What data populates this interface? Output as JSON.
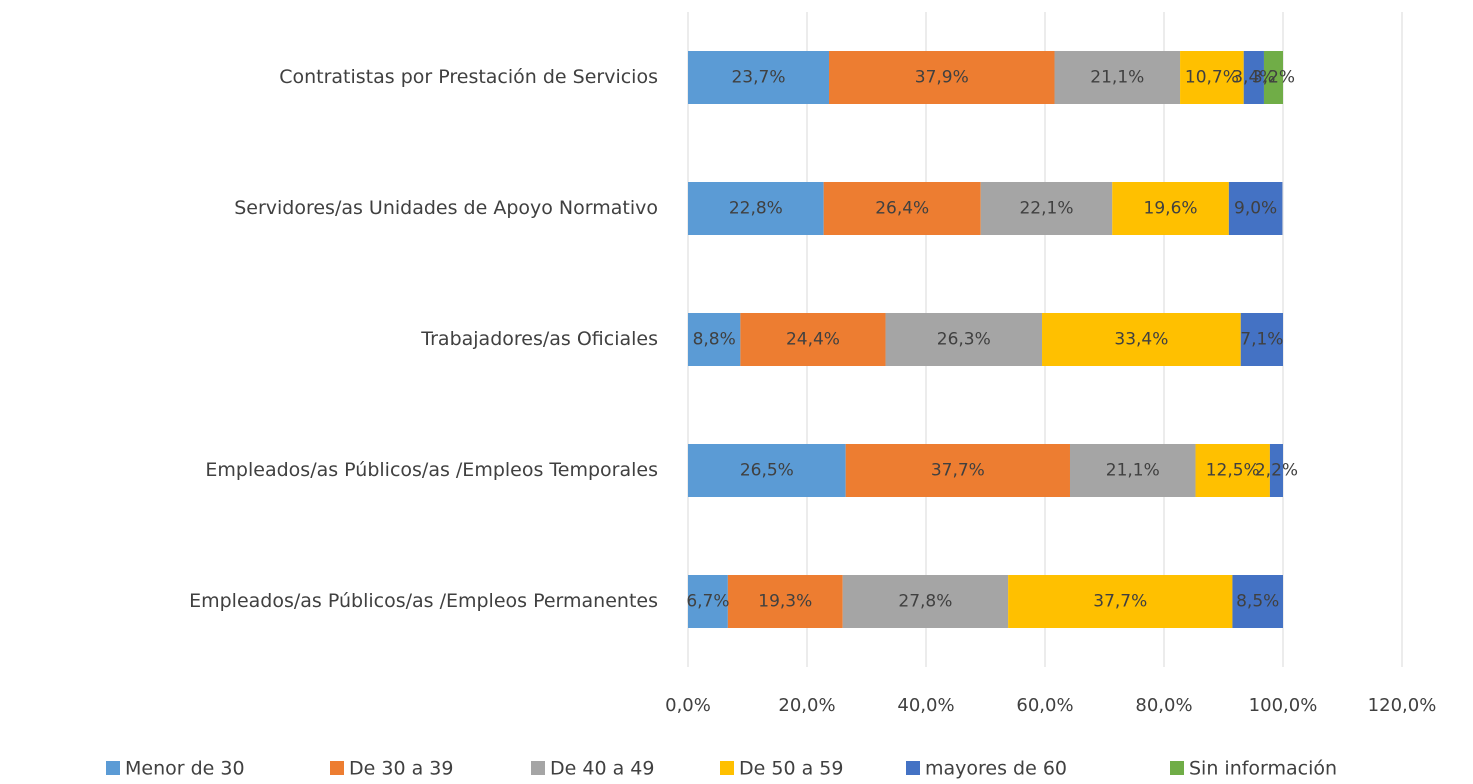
{
  "chart_data": {
    "type": "stacked-barh",
    "categories": [
      "Contratistas por Prestación de Servicios",
      "Servidores/as Unidades de Apoyo Normativo",
      "Trabajadores/as Oficiales",
      "Empleados/as Públicos/as /Empleos Temporales",
      "Empleados/as Públicos/as /Empleos Permanentes"
    ],
    "series": [
      {
        "name": "Menor de 30",
        "color": "#5b9bd5",
        "values": [
          23.7,
          22.8,
          8.8,
          26.5,
          6.7
        ],
        "value_labels": [
          "23,7%",
          "22,8%",
          "8,8%",
          "26,5%",
          "6,7%"
        ]
      },
      {
        "name": "De 30 a 39",
        "color": "#ed7d31",
        "values": [
          37.9,
          26.4,
          24.4,
          37.7,
          19.3
        ],
        "value_labels": [
          "37,9%",
          "26,4%",
          "24,4%",
          "37,7%",
          "19,3%"
        ]
      },
      {
        "name": "De 40 a 49",
        "color": "#a5a5a5",
        "values": [
          21.1,
          22.1,
          26.3,
          21.1,
          27.8
        ],
        "value_labels": [
          "21,1%",
          "22,1%",
          "26,3%",
          "21,1%",
          "27,8%"
        ]
      },
      {
        "name": "De 50 a 59",
        "color": "#ffc000",
        "values": [
          10.7,
          19.6,
          33.4,
          12.5,
          37.7
        ],
        "value_labels": [
          "10,7%",
          "19,6%",
          "33,4%",
          "12,5%",
          "37,7%"
        ]
      },
      {
        "name": "mayores de 60",
        "color": "#4472c4",
        "values": [
          3.4,
          9.0,
          7.1,
          2.2,
          8.5
        ],
        "value_labels": [
          "3,4%",
          "9,0%",
          "7,1%",
          "2,2%",
          "8,5%"
        ]
      },
      {
        "name": "Sin información",
        "color": "#70ad47",
        "values": [
          3.2,
          null,
          null,
          null,
          null
        ],
        "value_labels": [
          "3,2%",
          null,
          null,
          null,
          null
        ]
      }
    ],
    "xlim": [
      0,
      120
    ],
    "xticks": [
      {
        "value": 0,
        "label": "0,0%"
      },
      {
        "value": 20,
        "label": "20,0%"
      },
      {
        "value": 40,
        "label": "40,0%"
      },
      {
        "value": 60,
        "label": "60,0%"
      },
      {
        "value": 80,
        "label": "80,0%"
      },
      {
        "value": 100,
        "label": "100,0%"
      },
      {
        "value": 120,
        "label": "120,0%"
      }
    ],
    "grid": true,
    "legend": "bottom"
  }
}
